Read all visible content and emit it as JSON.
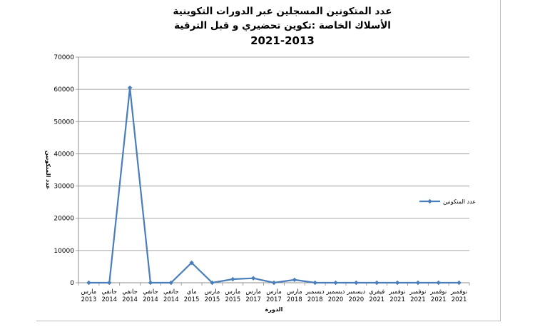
{
  "chart_data": {
    "type": "line",
    "title": [
      "عدد المتكونين المسجلين عبر الدورات التكوينية",
      "الأسلاك الخاصة :تكوين تحضيري و قبل الترقية",
      "2021-2013"
    ],
    "xlabel": "الدورة",
    "ylabel": "عدد المتكونين",
    "ylim": [
      0,
      70000
    ],
    "yticks": [
      "0",
      "10000",
      "20000",
      "30000",
      "40000",
      "50000",
      "60000",
      "70000"
    ],
    "categories": [
      [
        "مارس",
        "2013"
      ],
      [
        "جانفي",
        "2014"
      ],
      [
        "جانفي",
        "2014"
      ],
      [
        "جانفي",
        "2014"
      ],
      [
        "جانفي",
        "2014"
      ],
      [
        "ماي",
        "2015"
      ],
      [
        "مارس",
        "2015"
      ],
      [
        "مارس",
        "2015"
      ],
      [
        "مارس",
        "2017"
      ],
      [
        "مارس",
        "2017"
      ],
      [
        "مارس",
        "2018"
      ],
      [
        "ديسمبر",
        "2018"
      ],
      [
        "ديسمبر",
        "2020"
      ],
      [
        "ديسمبر",
        "2020"
      ],
      [
        "فيفري",
        "2021"
      ],
      [
        "نوفمبر",
        "2021"
      ],
      [
        "نوفمبر",
        "2021"
      ],
      [
        "نوفمبر",
        "2021"
      ],
      [
        "نوفمبر",
        "2021"
      ]
    ],
    "series": [
      {
        "name": "عدد المتكونين",
        "color": "#4a7ebb",
        "values": [
          0,
          0,
          60500,
          0,
          0,
          6200,
          0,
          1100,
          1400,
          0,
          900,
          0,
          0,
          0,
          0,
          0,
          0,
          0,
          0
        ]
      }
    ],
    "grid": true,
    "legend": "right"
  }
}
